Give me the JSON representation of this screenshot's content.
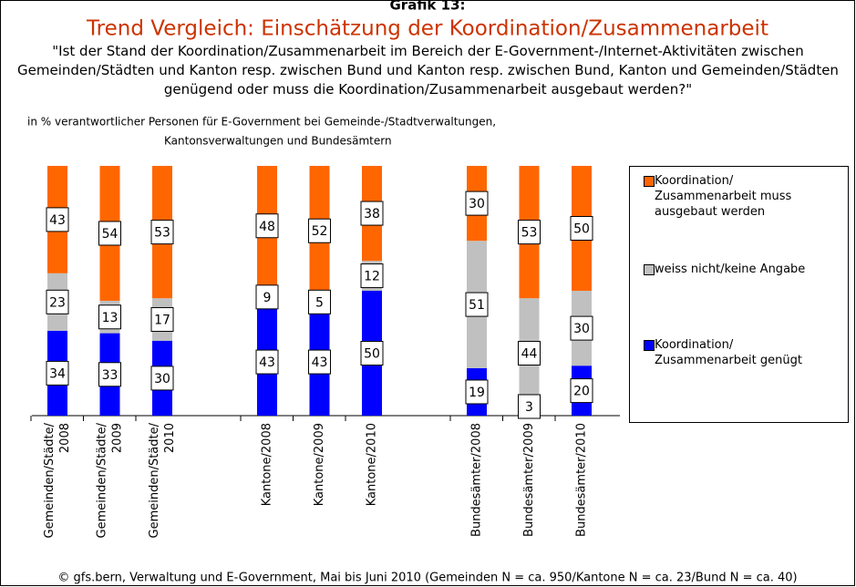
{
  "heading": "Grafik 13:",
  "chart_data": {
    "type": "stacked_bar",
    "title": "Trend Vergleich: Einschätzung der Koordination/Zusammenarbeit",
    "question": "\"Ist der Stand der Koordination/Zusammenarbeit im Bereich der E-Government-/Internet-Aktivitäten zwischen Gemeinden/Städten und Kanton resp. zwischen Bund und Kanton resp. zwischen Bund, Kanton und Gemeinden/Städten genügend oder muss die Koordination/Zusammenarbeit ausgebaut werden?\"",
    "subtitle": [
      "in % verantwortlicher Personen für E-Government bei Gemeinde-/Stadtverwaltungen,",
      "Kantonsverwaltungen und Bundesämtern"
    ],
    "categories": [
      [
        "Gemeinden/Städte/",
        "2008"
      ],
      [
        "Gemeinden/Städte/",
        "2009"
      ],
      [
        "Gemeinden/Städte/",
        "2010"
      ],
      [
        "Kantone/2008"
      ],
      [
        "Kantone/2009"
      ],
      [
        "Kantone/2010"
      ],
      [
        "Bundesämter/2008"
      ],
      [
        "Bundesämter/2009"
      ],
      [
        "Bundesämter/2010"
      ]
    ],
    "series": [
      {
        "name": "Koordination/ Zusammenarbeit genügt",
        "color": "#0000ff",
        "values": [
          34,
          33,
          30,
          43,
          43,
          50,
          19,
          3,
          20
        ]
      },
      {
        "name": "weiss nicht/keine Angabe",
        "color": "#c0c0c0",
        "values": [
          23,
          13,
          17,
          9,
          5,
          12,
          51,
          44,
          30
        ]
      },
      {
        "name": "Koordination/ Zusammenarbeit muss ausgebaut werden",
        "color": "#ff6600",
        "values": [
          43,
          54,
          53,
          48,
          52,
          38,
          30,
          53,
          50
        ]
      }
    ],
    "ylim": [
      0,
      100
    ],
    "source": "© gfs.bern, Verwaltung und E-Government, Mai bis Juni 2010 (Gemeinden N = ca. 950/Kantone N = ca. 23/Bund N = ca. 40)"
  }
}
